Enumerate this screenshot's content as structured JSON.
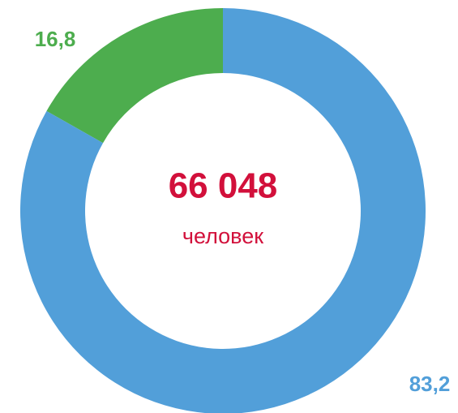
{
  "chart_data": {
    "type": "donut",
    "values": [
      83.2,
      16.8
    ],
    "value_labels": [
      "83,2",
      "16,8"
    ],
    "colors": [
      "#529fd9",
      "#4dad4e"
    ],
    "center_text": "66 048",
    "center_subtext": "человек"
  }
}
